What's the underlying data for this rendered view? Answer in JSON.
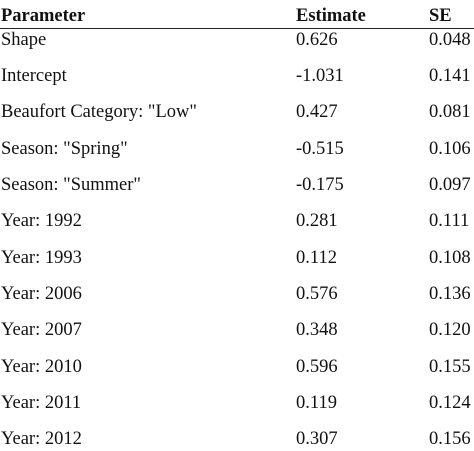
{
  "header": {
    "parameter": "Parameter",
    "estimate": "Estimate",
    "se": "SE"
  },
  "rows": [
    {
      "parameter": "Shape",
      "estimate": "0.626",
      "se": "0.048"
    },
    {
      "parameter": "Intercept",
      "estimate": "-1.031",
      "se": "0.141"
    },
    {
      "parameter": "Beaufort Category: \"Low\"",
      "estimate": "0.427",
      "se": "0.081"
    },
    {
      "parameter": "Season: \"Spring\"",
      "estimate": "-0.515",
      "se": "0.106"
    },
    {
      "parameter": "Season: \"Summer\"",
      "estimate": "-0.175",
      "se": "0.097"
    },
    {
      "parameter": "Year: 1992",
      "estimate": "0.281",
      "se": "0.111"
    },
    {
      "parameter": "Year: 1993",
      "estimate": "0.112",
      "se": "0.108"
    },
    {
      "parameter": "Year: 2006",
      "estimate": "0.576",
      "se": "0.136"
    },
    {
      "parameter": "Year: 2007",
      "estimate": "0.348",
      "se": "0.120"
    },
    {
      "parameter": "Year: 2010",
      "estimate": "0.596",
      "se": "0.155"
    },
    {
      "parameter": "Year: 2011",
      "estimate": "0.119",
      "se": "0.124"
    },
    {
      "parameter": "Year: 2012",
      "estimate": "0.307",
      "se": "0.156"
    }
  ]
}
